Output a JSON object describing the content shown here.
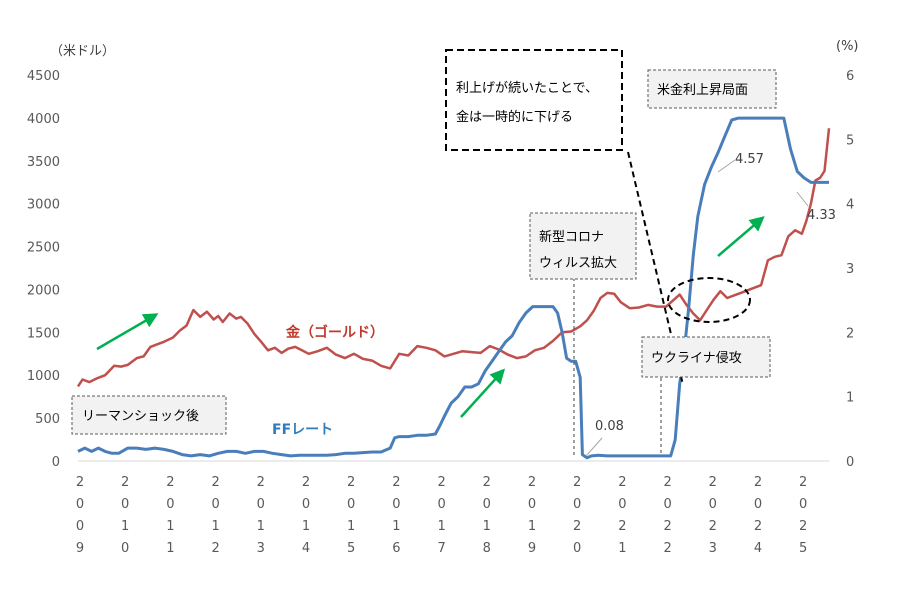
{
  "chart_data": {
    "type": "line",
    "y_left_label": "（米ドル）",
    "y_right_label": "(%)",
    "y_left_ticks": [
      "4500",
      "4000",
      "3500",
      "3000",
      "2500",
      "2000",
      "1500",
      "1000",
      "500",
      "0"
    ],
    "y_right_ticks": [
      "6",
      "5",
      "4",
      "3",
      "2",
      "1",
      "0"
    ],
    "ylim_left": [
      0,
      4500
    ],
    "ylim_right": [
      0,
      6
    ],
    "x_tick_labels": [
      [
        "2",
        "0",
        "0",
        "9"
      ],
      [
        "2",
        "0",
        "1",
        "0"
      ],
      [
        "2",
        "0",
        "1",
        "1"
      ],
      [
        "2",
        "0",
        "1",
        "2"
      ],
      [
        "2",
        "0",
        "1",
        "3"
      ],
      [
        "2",
        "0",
        "1",
        "4"
      ],
      [
        "2",
        "0",
        "1",
        "5"
      ],
      [
        "2",
        "0",
        "1",
        "6"
      ],
      [
        "2",
        "0",
        "1",
        "7"
      ],
      [
        "2",
        "0",
        "1",
        "8"
      ],
      [
        "2",
        "0",
        "1",
        "9"
      ],
      [
        "2",
        "0",
        "2",
        "0"
      ],
      [
        "2",
        "0",
        "2",
        "1"
      ],
      [
        "2",
        "0",
        "2",
        "2"
      ],
      [
        "2",
        "0",
        "2",
        "3"
      ],
      [
        "2",
        "0",
        "2",
        "4"
      ],
      [
        "2",
        "0",
        "2",
        "5"
      ]
    ],
    "series": [
      {
        "name": "金（ゴールド）",
        "axis": "left",
        "color": "#c0504d",
        "x": [
          2009.0,
          2009.1,
          2009.25,
          2009.4,
          2009.6,
          2009.8,
          2009.95,
          2010.1,
          2010.3,
          2010.45,
          2010.6,
          2010.75,
          2010.9,
          2011.1,
          2011.25,
          2011.4,
          2011.55,
          2011.7,
          2011.85,
          2012.0,
          2012.1,
          2012.2,
          2012.35,
          2012.5,
          2012.6,
          2012.75,
          2012.9,
          2013.05,
          2013.2,
          2013.35,
          2013.5,
          2013.65,
          2013.8,
          2013.95,
          2014.1,
          2014.3,
          2014.5,
          2014.7,
          2014.9,
          2015.1,
          2015.3,
          2015.5,
          2015.7,
          2015.9,
          2016.1,
          2016.3,
          2016.5,
          2016.7,
          2016.9,
          2017.1,
          2017.3,
          2017.5,
          2017.7,
          2017.9,
          2018.1,
          2018.3,
          2018.5,
          2018.7,
          2018.9,
          2019.1,
          2019.3,
          2019.5,
          2019.7,
          2019.9,
          2020.1,
          2020.25,
          2020.4,
          2020.55,
          2020.7,
          2020.85,
          2021.0,
          2021.2,
          2021.4,
          2021.6,
          2021.8,
          2022.0,
          2022.15,
          2022.3,
          2022.45,
          2022.6,
          2022.75,
          2022.9,
          2023.05,
          2023.2,
          2023.35,
          2023.5,
          2023.65,
          2023.8,
          2023.95,
          2024.1,
          2024.25,
          2024.4,
          2024.55,
          2024.7,
          2024.85,
          2025.0,
          2025.1,
          2025.2,
          2025.3,
          2025.4,
          2025.5,
          2025.6
        ],
        "values": [
          870,
          950,
          920,
          960,
          1000,
          1110,
          1100,
          1120,
          1200,
          1220,
          1330,
          1360,
          1390,
          1440,
          1520,
          1580,
          1760,
          1680,
          1740,
          1650,
          1690,
          1620,
          1720,
          1660,
          1680,
          1600,
          1480,
          1390,
          1290,
          1320,
          1260,
          1310,
          1330,
          1290,
          1250,
          1280,
          1320,
          1240,
          1200,
          1250,
          1190,
          1170,
          1110,
          1080,
          1250,
          1230,
          1340,
          1320,
          1290,
          1220,
          1250,
          1280,
          1270,
          1260,
          1340,
          1300,
          1240,
          1200,
          1220,
          1290,
          1320,
          1400,
          1500,
          1510,
          1570,
          1640,
          1750,
          1900,
          1960,
          1950,
          1850,
          1780,
          1790,
          1820,
          1800,
          1800,
          1870,
          1940,
          1820,
          1720,
          1640,
          1760,
          1880,
          1980,
          1900,
          1930,
          1960,
          1990,
          2020,
          2050,
          2340,
          2380,
          2400,
          2620,
          2690,
          2650,
          2800,
          3000,
          3270,
          3300,
          3380,
          3880
        ]
      },
      {
        "name": "FFレート",
        "axis": "right",
        "color": "#4a7ebb",
        "x": [
          2009.0,
          2009.15,
          2009.3,
          2009.45,
          2009.6,
          2009.75,
          2009.9,
          2010.1,
          2010.3,
          2010.5,
          2010.7,
          2010.9,
          2011.1,
          2011.3,
          2011.5,
          2011.7,
          2011.9,
          2012.1,
          2012.3,
          2012.5,
          2012.7,
          2012.9,
          2013.1,
          2013.3,
          2013.5,
          2013.7,
          2013.9,
          2014.1,
          2014.3,
          2014.5,
          2014.7,
          2014.9,
          2015.1,
          2015.3,
          2015.5,
          2015.7,
          2015.9,
          2016.0,
          2016.1,
          2016.3,
          2016.5,
          2016.7,
          2016.9,
          2017.0,
          2017.1,
          2017.25,
          2017.4,
          2017.55,
          2017.7,
          2017.85,
          2018.0,
          2018.15,
          2018.3,
          2018.45,
          2018.6,
          2018.75,
          2018.9,
          2019.05,
          2019.2,
          2019.35,
          2019.5,
          2019.6,
          2019.7,
          2019.8,
          2019.9,
          2020.0,
          2020.1,
          2020.15,
          2020.25,
          2020.35,
          2020.5,
          2020.7,
          2020.9,
          2021.1,
          2021.3,
          2021.5,
          2021.7,
          2021.9,
          2022.0,
          2022.1,
          2022.2,
          2022.3,
          2022.4,
          2022.5,
          2022.6,
          2022.7,
          2022.85,
          2023.0,
          2023.15,
          2023.3,
          2023.45,
          2023.6,
          2023.8,
          2024.0,
          2024.2,
          2024.4,
          2024.6,
          2024.75,
          2024.9,
          2025.05,
          2025.2,
          2025.35,
          2025.5,
          2025.6
        ],
        "values": [
          0.15,
          0.2,
          0.15,
          0.2,
          0.15,
          0.12,
          0.12,
          0.2,
          0.2,
          0.18,
          0.2,
          0.18,
          0.15,
          0.1,
          0.08,
          0.1,
          0.08,
          0.12,
          0.15,
          0.15,
          0.12,
          0.15,
          0.15,
          0.12,
          0.1,
          0.08,
          0.09,
          0.09,
          0.09,
          0.09,
          0.1,
          0.12,
          0.12,
          0.13,
          0.14,
          0.14,
          0.2,
          0.36,
          0.38,
          0.38,
          0.4,
          0.4,
          0.42,
          0.55,
          0.7,
          0.9,
          1.0,
          1.15,
          1.15,
          1.2,
          1.4,
          1.55,
          1.7,
          1.85,
          1.95,
          2.15,
          2.3,
          2.4,
          2.4,
          2.4,
          2.4,
          2.3,
          2.0,
          1.6,
          1.55,
          1.55,
          1.3,
          0.1,
          0.05,
          0.08,
          0.09,
          0.08,
          0.08,
          0.08,
          0.08,
          0.08,
          0.08,
          0.08,
          0.08,
          0.08,
          0.33,
          1.2,
          1.7,
          2.4,
          3.2,
          3.8,
          4.3,
          4.57,
          4.8,
          5.05,
          5.3,
          5.33,
          5.33,
          5.33,
          5.33,
          5.33,
          5.33,
          4.85,
          4.5,
          4.4,
          4.33,
          4.33,
          4.33,
          4.33
        ]
      }
    ],
    "annotations": {
      "gold_label": "金（ゴールド）",
      "ff_label": "FFレート",
      "lehman": "リーマンショック後",
      "covid_line1": "新型コロナ",
      "covid_line2": "ウィルス拡大",
      "ukraine": "ウクライナ侵攻",
      "us_hike": "米金利上昇局面",
      "note_line1": "利上げが続いたことで、",
      "note_line2": "金は一時的に下げる",
      "val_008": "0.08",
      "val_457": "4.57",
      "val_433": "4.33"
    }
  }
}
